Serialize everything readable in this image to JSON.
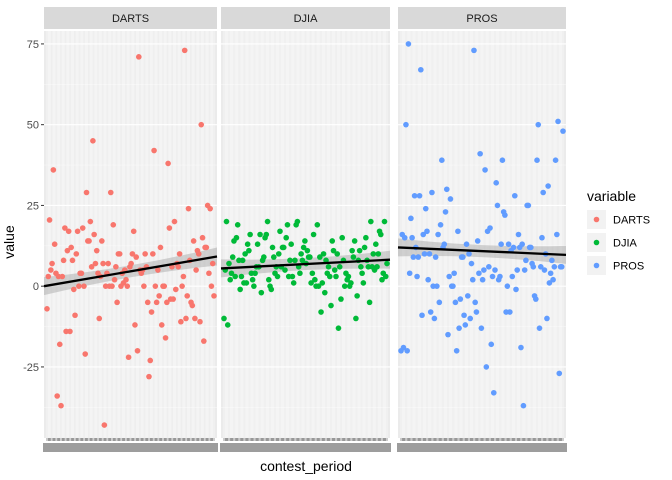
{
  "chart_data": {
    "type": "scatter",
    "facet_by": "variable",
    "xlabel": "contest_period",
    "ylabel": "value",
    "ylim": [
      -47,
      79
    ],
    "y_ticks": [
      -25,
      0,
      25,
      50,
      75
    ],
    "y_tick_labels": [
      "-25",
      "0",
      "25",
      "50",
      "75"
    ],
    "grid": true,
    "smooth": "lm",
    "legend": {
      "title": "variable",
      "position": "right",
      "entries": [
        "DARTS",
        "DJIA",
        "PROS"
      ]
    },
    "panels": [
      {
        "name": "DARTS",
        "color": "#F8766D",
        "values": [
          -7,
          3,
          20.5,
          5,
          7,
          36,
          13,
          4,
          -34,
          3,
          -18,
          -37,
          3,
          8,
          18,
          -14,
          11,
          17,
          -14,
          12,
          8,
          -1,
          -9,
          10,
          17,
          0,
          4,
          4,
          18,
          0,
          -21,
          29,
          14,
          14,
          20,
          6,
          45,
          16,
          7,
          11,
          4,
          -10,
          3,
          14,
          7,
          -43,
          0,
          4,
          7,
          0,
          29,
          0,
          19,
          2,
          6,
          -5,
          10,
          10,
          0,
          4,
          1,
          5,
          2,
          0,
          -22,
          6,
          7,
          10,
          17,
          -12,
          9,
          -20,
          71,
          5,
          4,
          5,
          0,
          10,
          6,
          -5,
          -28,
          -23,
          -8,
          10,
          42,
          0,
          -5,
          5,
          -3,
          12,
          -12,
          0,
          0,
          -16,
          -5,
          38,
          18,
          -4,
          6,
          -4,
          20,
          -1,
          7,
          6,
          10,
          -11,
          0,
          3,
          73,
          -10,
          -3,
          24,
          8,
          -5,
          -6,
          14,
          -10,
          5,
          11,
          10,
          -11,
          50,
          15,
          -17,
          12,
          12,
          25,
          4,
          24,
          0,
          7,
          -3
        ],
        "trend": [
          0,
          9.2
        ]
      },
      {
        "name": "DJIA",
        "color": "#00BA38",
        "values": [
          -10,
          5,
          20,
          -12,
          7,
          2,
          4,
          9,
          14,
          3,
          15,
          19,
          8,
          -1,
          3,
          8,
          1,
          10,
          1,
          13,
          11,
          16,
          4,
          2,
          0,
          4,
          6,
          13,
          6,
          16,
          -2,
          8,
          9,
          15,
          16,
          20,
          2,
          0,
          -1,
          12,
          9,
          4,
          6,
          3,
          10,
          17,
          6,
          12,
          12,
          5,
          15,
          19,
          3,
          8,
          13,
          3,
          1,
          8,
          19,
          20,
          6,
          4,
          10,
          8,
          12,
          14,
          7,
          11,
          9,
          9,
          1,
          4,
          16,
          2,
          0,
          19,
          0,
          9,
          -8,
          1,
          10,
          -2,
          8,
          4,
          6,
          3,
          -6,
          14,
          11,
          5,
          3,
          10,
          -13,
          6,
          -4,
          15,
          8,
          0,
          4,
          2,
          3,
          0,
          1,
          11,
          9,
          14,
          -10,
          -3,
          8,
          11,
          6,
          4,
          1,
          12,
          15,
          8,
          6,
          -5,
          20,
          6,
          10,
          5,
          13,
          6,
          10,
          17,
          16,
          2,
          4,
          20,
          3,
          7
        ],
        "trend": [
          5.5,
          8.2
        ]
      },
      {
        "name": "PROS",
        "color": "#619CFF",
        "values": [
          -20,
          16,
          -19,
          15,
          50,
          -20,
          75,
          4,
          21,
          15,
          9,
          28,
          12,
          3,
          9,
          28,
          67,
          -9,
          16,
          10,
          24,
          17,
          2,
          10,
          -8,
          29,
          0,
          -10,
          9,
          0,
          16,
          -5,
          19,
          39,
          12,
          13,
          23,
          30,
          -15,
          3,
          27,
          0,
          0,
          4,
          -5,
          -20,
          17,
          -13,
          -4,
          9,
          9,
          -9,
          -12,
          13,
          -3,
          10,
          -10,
          7,
          2,
          73,
          -5,
          -8,
          14,
          4,
          41,
          -13,
          2,
          5,
          36,
          -25,
          17,
          6,
          18,
          -18,
          3,
          -33,
          5,
          32,
          25,
          2,
          3,
          13,
          39,
          23,
          22,
          -8,
          0,
          13,
          -8,
          11,
          3,
          12,
          28,
          -1,
          5,
          16,
          12,
          -19,
          13,
          -37,
          5,
          8,
          25,
          25,
          12,
          12,
          7,
          6,
          -3,
          -4,
          39,
          50,
          -13,
          6,
          15,
          29,
          5,
          10,
          -10,
          31,
          1,
          4,
          8,
          2,
          6,
          39,
          16,
          51,
          -27,
          6,
          6,
          48
        ],
        "trend": [
          12,
          9.7
        ]
      }
    ]
  }
}
